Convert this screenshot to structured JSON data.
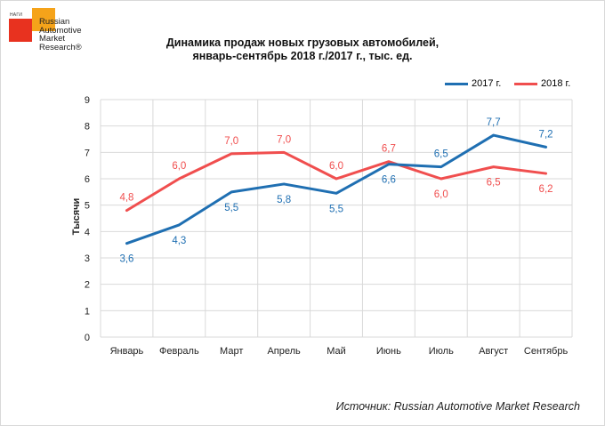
{
  "logo": {
    "small_text": "НАГИ",
    "lines": [
      "Russian",
      "Automotive",
      "Market",
      "Research®"
    ],
    "colors": {
      "red": "#e8321f",
      "orange": "#f5a31a"
    }
  },
  "chart_data": {
    "type": "line",
    "title": "Динамика продаж новых грузовых автомобилей,",
    "subtitle": "январь-сентябрь 2018 г./2017 г., тыс. ед.",
    "xlabel": "",
    "ylabel": "Тысячи",
    "ylim": [
      0,
      9
    ],
    "yticks": [
      0,
      1,
      2,
      3,
      4,
      5,
      6,
      7,
      8,
      9
    ],
    "grid": true,
    "legend_position": "top-right",
    "categories": [
      "Январь",
      "Февраль",
      "Март",
      "Апрель",
      "Май",
      "Июнь",
      "Июль",
      "Август",
      "Сентябрь"
    ],
    "series": [
      {
        "name": "2017 г.",
        "color": "#1f6fb2",
        "values": [
          3.55,
          4.25,
          5.5,
          5.8,
          5.45,
          6.55,
          6.45,
          7.65,
          7.2
        ],
        "labels": [
          "3,6",
          "4,3",
          "5,5",
          "5,8",
          "5,5",
          "6,6",
          "6,5",
          "7,7",
          "7,2"
        ]
      },
      {
        "name": "2018 г.",
        "color": "#f04e4e",
        "values": [
          4.8,
          6.0,
          6.95,
          7.0,
          6.0,
          6.65,
          6.0,
          6.45,
          6.2
        ],
        "labels": [
          "4,8",
          "6,0",
          "7,0",
          "7,0",
          "6,0",
          "6,7",
          "6,0",
          "6,5",
          "6,2"
        ]
      }
    ]
  },
  "source": "Источник: Russian Automotive Market Research"
}
